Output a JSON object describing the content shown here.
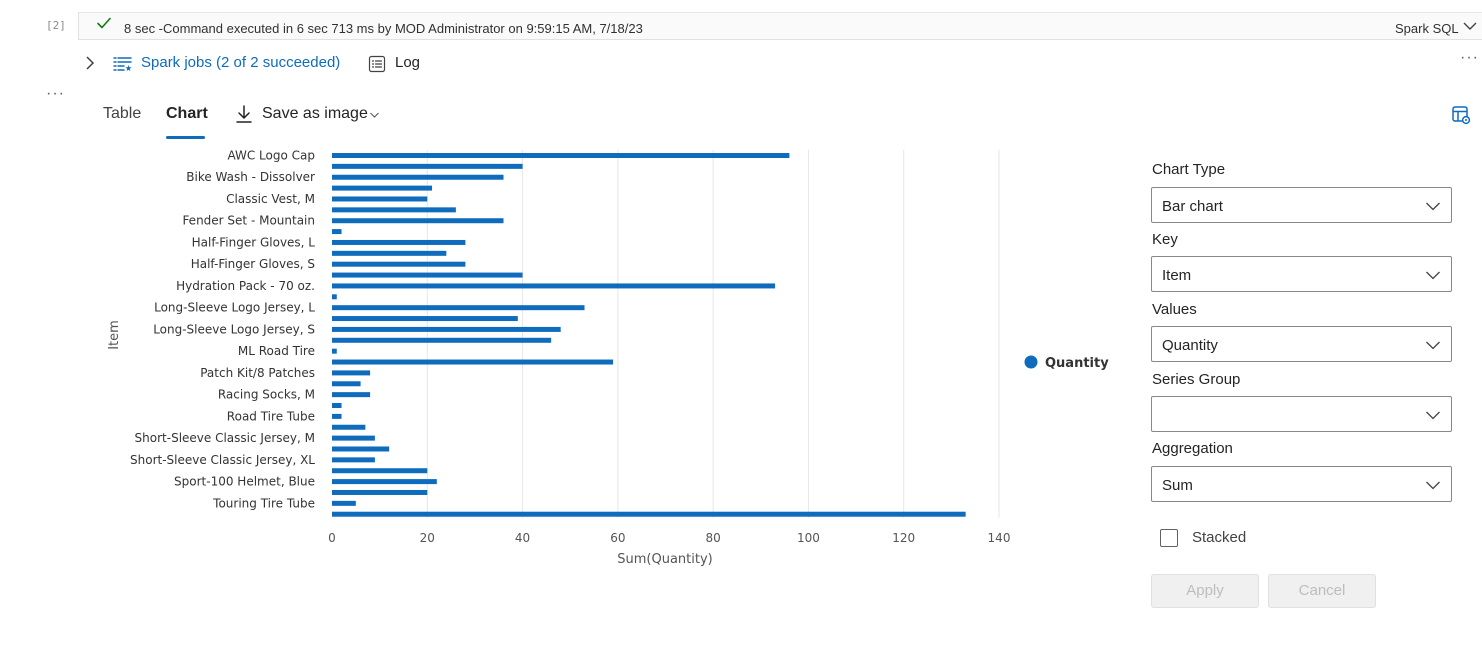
{
  "cell": {
    "number": "[2]",
    "status_text": "8 sec -Command executed in 6 sec 713 ms by MOD Administrator on 9:59:15 AM, 7/18/23",
    "language": "Spark SQL"
  },
  "jobs": {
    "link_text": "Spark jobs (2 of 2 succeeded)",
    "log_label": "Log"
  },
  "more_menu": "···",
  "tabs": {
    "table": "Table",
    "chart": "Chart",
    "save_image": "Save as image"
  },
  "chart_data": {
    "type": "bar",
    "orientation": "horizontal",
    "ylabel": "Item",
    "xlabel": "Sum(Quantity)",
    "xlim": [
      0,
      140
    ],
    "xticks": [
      0,
      20,
      40,
      60,
      80,
      100,
      120,
      140
    ],
    "grid": true,
    "legend_position": "right",
    "series_name": "Quantity",
    "bar_color": "#0f6cbd",
    "categories": [
      "AWC Logo Cap",
      "",
      "Bike Wash - Dissolver",
      "",
      "Classic Vest, M",
      "",
      "Fender Set - Mountain",
      "",
      "Half-Finger Gloves, L",
      "",
      "Half-Finger Gloves, S",
      "",
      "Hydration Pack - 70 oz.",
      "",
      "Long-Sleeve Logo Jersey, L",
      "",
      "Long-Sleeve Logo Jersey, S",
      "",
      "ML Road Tire",
      "",
      "Patch Kit/8 Patches",
      "",
      "Racing Socks, M",
      "",
      "Road Tire Tube",
      "",
      "Short-Sleeve Classic Jersey, M",
      "",
      "Short-Sleeve Classic Jersey, XL",
      "",
      "Sport-100 Helmet, Blue",
      "",
      "Touring Tire Tube",
      ""
    ],
    "values": [
      96,
      40,
      36,
      21,
      20,
      26,
      36,
      2,
      28,
      24,
      28,
      40,
      93,
      1,
      53,
      39,
      48,
      46,
      1,
      59,
      8,
      6,
      8,
      2,
      2,
      7,
      9,
      12,
      9,
      20,
      22,
      20,
      5,
      133
    ]
  },
  "panel": {
    "chart_type_label": "Chart Type",
    "chart_type_value": "Bar chart",
    "key_label": "Key",
    "key_value": "Item",
    "values_label": "Values",
    "values_value": "Quantity",
    "series_group_label": "Series Group",
    "series_group_value": "",
    "aggregation_label": "Aggregation",
    "aggregation_value": "Sum",
    "stacked_label": "Stacked",
    "apply_label": "Apply",
    "cancel_label": "Cancel"
  },
  "icons": {
    "status": "checkmark-icon",
    "jobs": "spark-jobs-icon",
    "log": "log-icon",
    "save": "download-icon",
    "settings": "chart-settings-icon"
  }
}
